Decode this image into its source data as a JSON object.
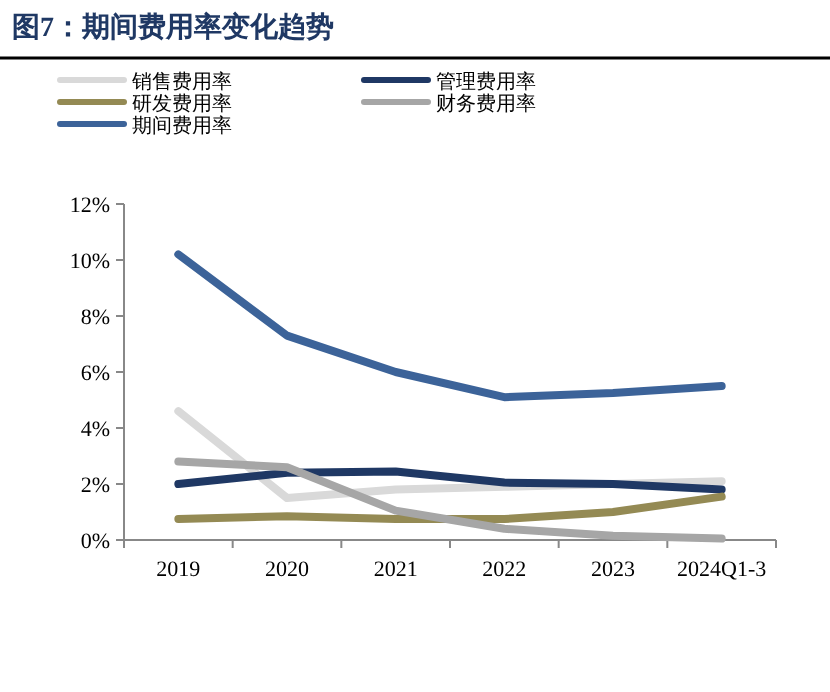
{
  "chart_data": {
    "type": "line",
    "title": "图7：期间费用率变化趋势",
    "categories": [
      "2019",
      "2020",
      "2021",
      "2022",
      "2023",
      "2024Q1-3"
    ],
    "series": [
      {
        "name": "销售费用率",
        "color": "#d9d9d9",
        "values": [
          4.6,
          1.5,
          1.8,
          1.9,
          2.0,
          2.1
        ]
      },
      {
        "name": "管理费用率",
        "color": "#1f3864",
        "values": [
          2.0,
          2.4,
          2.45,
          2.05,
          2.0,
          1.8
        ]
      },
      {
        "name": "研发费用率",
        "color": "#948a54",
        "values": [
          0.75,
          0.85,
          0.75,
          0.75,
          1.0,
          1.55
        ]
      },
      {
        "name": "财务费用率",
        "color": "#a6a6a6",
        "values": [
          2.8,
          2.6,
          1.05,
          0.4,
          0.15,
          0.05
        ]
      },
      {
        "name": "期间费用率",
        "color": "#3c6399",
        "values": [
          10.2,
          7.3,
          6.0,
          5.1,
          5.25,
          5.5
        ]
      }
    ],
    "ylim": [
      0,
      12
    ],
    "yticks": [
      {
        "value": 0,
        "label": "0%"
      },
      {
        "value": 2,
        "label": "2%"
      },
      {
        "value": 4,
        "label": "4%"
      },
      {
        "value": 6,
        "label": "6%"
      },
      {
        "value": 8,
        "label": "8%"
      },
      {
        "value": 10,
        "label": "10%"
      },
      {
        "value": 12,
        "label": "12%"
      }
    ],
    "legend": "top",
    "grid": false,
    "marker": "none",
    "line_style": "solid"
  }
}
